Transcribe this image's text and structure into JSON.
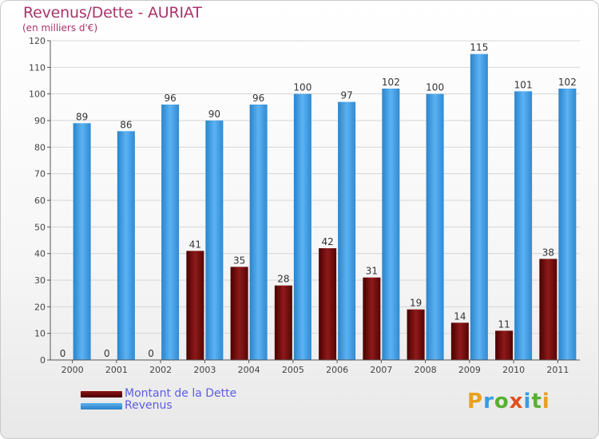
{
  "header": {
    "title": "Revenus/Dette - AURIAT",
    "subtitle": "(en milliers d'€)"
  },
  "colors": {
    "dette": "#6b0a0a",
    "revenus": "#3a98e0",
    "title": "#a8356a",
    "legend_text": "#5c5ce6"
  },
  "chart_data": {
    "type": "bar",
    "title": "Revenus/Dette - AURIAT",
    "ylabel": "(en milliers d'€)",
    "categories": [
      "2000",
      "2001",
      "2002",
      "2003",
      "2004",
      "2005",
      "2006",
      "2007",
      "2008",
      "2009",
      "2010",
      "2011"
    ],
    "series": [
      {
        "name": "Montant de la Dette",
        "color": "#6b0a0a",
        "values": [
          0,
          0,
          0,
          41,
          35,
          28,
          42,
          31,
          19,
          14,
          11,
          38
        ]
      },
      {
        "name": "Revenus",
        "color": "#3a98e0",
        "values": [
          89,
          86,
          96,
          90,
          96,
          100,
          97,
          102,
          100,
          115,
          101,
          102
        ]
      }
    ],
    "ylim": [
      0,
      120
    ],
    "yticks": [
      0,
      10,
      20,
      30,
      40,
      50,
      60,
      70,
      80,
      90,
      100,
      110,
      120
    ],
    "grid": true,
    "legend_position": "bottom-left"
  },
  "legend": {
    "items": [
      {
        "label": "Montant de la Dette"
      },
      {
        "label": "Revenus"
      }
    ]
  },
  "logo": {
    "text": "Proxiti"
  }
}
